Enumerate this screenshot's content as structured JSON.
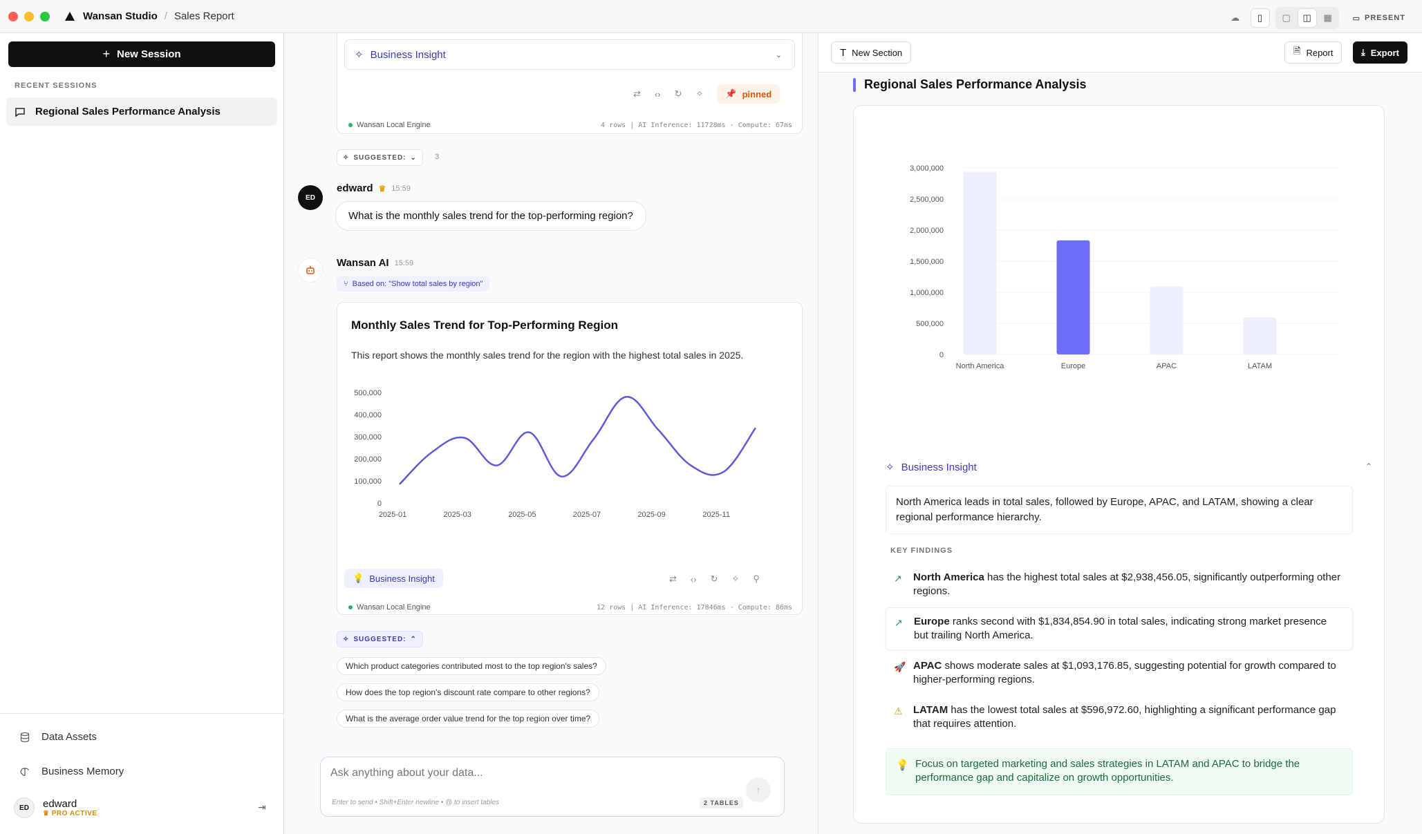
{
  "window": {
    "app_title": "Wansan Studio",
    "breadcrumb": "Sales Report",
    "present_label": "PRESENT",
    "colors": {
      "red": "#ff5f57",
      "yellow": "#febc2e",
      "green": "#28c840"
    }
  },
  "sidebar": {
    "new_session": "New Session",
    "recent_label": "RECENT SESSIONS",
    "sessions": [
      {
        "label": "Regional Sales Performance Analysis"
      }
    ],
    "data_assets": "Data Assets",
    "business_memory": "Business Memory",
    "user": {
      "initials": "ED",
      "name": "edward",
      "badge": "PRO ACTIVE"
    }
  },
  "chat": {
    "prev_card": {
      "insight_label": "Business Insight",
      "pinned_label": "pinned",
      "engine": "Wansan Local Engine",
      "meta": "4 rows  |  AI Inference: 11728ms · Compute: 67ms"
    },
    "suggested_collapsed": {
      "label": "SUGGESTED:",
      "count": "3"
    },
    "user_message": {
      "initials": "ED",
      "name": "edward",
      "time": "15:59",
      "text": "What is the monthly sales trend for the top-performing region?"
    },
    "ai_message": {
      "name": "Wansan AI",
      "time": "15:59",
      "based_on": "Based on: \"Show total sales by region\"",
      "report_title": "Monthly Sales Trend for Top-Performing Region",
      "report_desc": "This report shows the monthly sales trend for the region with the highest total sales in 2025.",
      "insight_chip": "Business Insight",
      "engine": "Wansan Local Engine",
      "meta": "12 rows  |  AI Inference: 17846ms · Compute: 86ms"
    },
    "suggested_open": {
      "label": "SUGGESTED:"
    },
    "suggestions": [
      "Which product categories contributed most to the top region's sales?",
      "How does the top region's discount rate compare to other regions?",
      "What is the average order value trend for the top region over time?"
    ],
    "composer": {
      "placeholder": "Ask anything about your data...",
      "hint": "Enter to send • Shift+Enter newline • @ to insert tables",
      "tables_badge": "2 TABLES"
    }
  },
  "right": {
    "new_section": "New Section",
    "report_btn": "Report",
    "export_btn": "Export",
    "section_title": "Regional Sales Performance Analysis",
    "insight_label": "Business Insight",
    "summary": "North America leads in total sales, followed by Europe, APAC, and LATAM, showing a clear regional performance hierarchy.",
    "key_findings_label": "KEY FINDINGS",
    "findings": [
      {
        "lead": "North America",
        "text": " has the highest total sales at $2,938,456.05, significantly outperforming other regions.",
        "icon": "trend-up-icon"
      },
      {
        "lead": "Europe",
        "text": " ranks second with $1,834,854.90 in total sales, indicating strong market presence but trailing North America.",
        "icon": "trend-up-icon"
      },
      {
        "lead": "APAC",
        "text": " shows moderate sales at $1,093,176.85, suggesting potential for growth compared to higher-performing regions.",
        "icon": "rocket-icon"
      },
      {
        "lead": "LATAM",
        "text": " has the lowest total sales at $596,972.60, highlighting a significant performance gap that requires attention.",
        "icon": "warning-icon"
      }
    ],
    "recommendation": "Focus on targeted marketing and sales strategies in LATAM and APAC to bridge the performance gap and capitalize on growth opportunities."
  },
  "chart_data": [
    {
      "type": "line",
      "title": "",
      "x": [
        "2025-01",
        "2025-02",
        "2025-03",
        "2025-04",
        "2025-05",
        "2025-06",
        "2025-07",
        "2025-08",
        "2025-09",
        "2025-10",
        "2025-11",
        "2025-12"
      ],
      "x_tick_labels": [
        "2025-01",
        "2025-03",
        "2025-05",
        "2025-07",
        "2025-09",
        "2025-11"
      ],
      "values": [
        85000,
        230000,
        295000,
        170000,
        320000,
        120000,
        290000,
        480000,
        330000,
        170000,
        140000,
        340000
      ],
      "y_ticks": [
        0,
        100000,
        200000,
        300000,
        400000,
        500000
      ],
      "y_tick_labels": [
        "0",
        "100,000",
        "200,000",
        "300,000",
        "400,000",
        "500,000"
      ],
      "ylim": [
        0,
        500000
      ],
      "color": "#5b5bd6"
    },
    {
      "type": "bar",
      "title": "",
      "categories": [
        "North America",
        "Europe",
        "APAC",
        "LATAM"
      ],
      "values": [
        2938456.05,
        1834854.9,
        1093176.85,
        596972.6
      ],
      "highlight_index": 1,
      "y_ticks": [
        0,
        500000,
        1000000,
        1500000,
        2000000,
        2500000,
        3000000
      ],
      "y_tick_labels": [
        "0",
        "500,000",
        "1,000,000",
        "1,500,000",
        "2,000,000",
        "2,500,000",
        "3,000,000"
      ],
      "ylim": [
        0,
        3000000
      ],
      "color": "#6b6ef9",
      "muted_color": "#eeeffd"
    }
  ]
}
